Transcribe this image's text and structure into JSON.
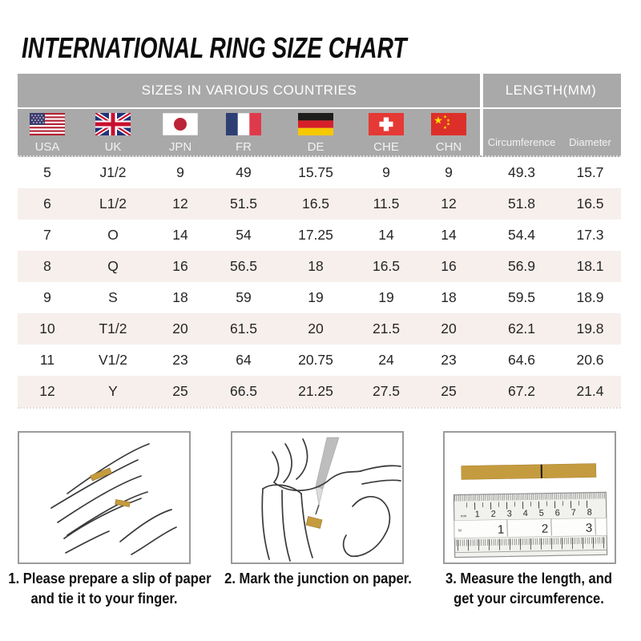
{
  "title": "INTERNATIONAL RING SIZE CHART",
  "colors": {
    "header_gray": "#a9a9a9",
    "alt_row": "#f6efec",
    "paper_gold": "#c59b3f",
    "text": "#262626"
  },
  "table": {
    "group_headers": [
      {
        "label": "SIZES IN VARIOUS COUNTRIES"
      },
      {
        "label": "LENGTH(MM)"
      }
    ],
    "columns": [
      {
        "code": "USA",
        "flag": "usa"
      },
      {
        "code": "UK",
        "flag": "uk"
      },
      {
        "code": "JPN",
        "flag": "jpn"
      },
      {
        "code": "FR",
        "flag": "fr"
      },
      {
        "code": "DE",
        "flag": "de"
      },
      {
        "code": "CHE",
        "flag": "che"
      },
      {
        "code": "CHN",
        "flag": "chn"
      },
      {
        "code": "Circumference"
      },
      {
        "code": "Diameter"
      }
    ],
    "rows": [
      [
        "5",
        "J1/2",
        "9",
        "49",
        "15.75",
        "9",
        "9",
        "49.3",
        "15.7"
      ],
      [
        "6",
        "L1/2",
        "12",
        "51.5",
        "16.5",
        "11.5",
        "12",
        "51.8",
        "16.5"
      ],
      [
        "7",
        "O",
        "14",
        "54",
        "17.25",
        "14",
        "14",
        "54.4",
        "17.3"
      ],
      [
        "8",
        "Q",
        "16",
        "56.5",
        "18",
        "16.5",
        "16",
        "56.9",
        "18.1"
      ],
      [
        "9",
        "S",
        "18",
        "59",
        "19",
        "19",
        "18",
        "59.5",
        "18.9"
      ],
      [
        "10",
        "T1/2",
        "20",
        "61.5",
        "20",
        "21.5",
        "20",
        "62.1",
        "19.8"
      ],
      [
        "11",
        "V1/2",
        "23",
        "64",
        "20.75",
        "24",
        "23",
        "64.6",
        "20.6"
      ],
      [
        "12",
        "Y",
        "25",
        "66.5",
        "21.25",
        "27.5",
        "25",
        "67.2",
        "21.4"
      ]
    ]
  },
  "steps": [
    {
      "lines": [
        "1. Please prepare a slip of paper",
        "and tie it to your finger."
      ]
    },
    {
      "lines": [
        "2. Mark the junction on paper."
      ]
    },
    {
      "lines": [
        "3. Measure the length, and",
        "get your circumference."
      ]
    }
  ],
  "ruler": {
    "cm_ticks": [
      "1",
      "2",
      "3",
      "4",
      "5",
      "6",
      "7",
      "8"
    ],
    "inch_ticks": [
      "1",
      "2",
      "3"
    ],
    "cm_unit_label": "mm",
    "inch_unit_label": "M"
  }
}
